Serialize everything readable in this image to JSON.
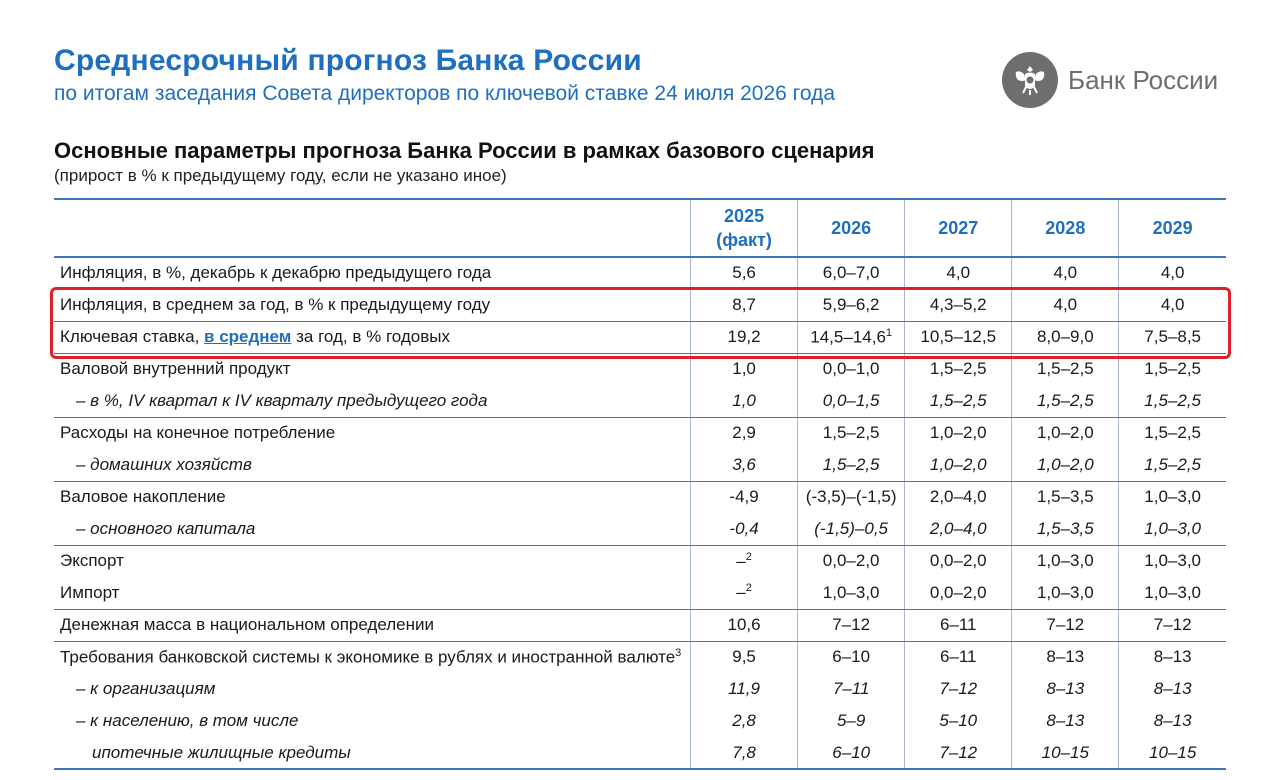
{
  "header": {
    "title": "Среднесрочный прогноз Банка России",
    "subtitle": "по итогам заседания Совета директоров по ключевой ставке 24 июля 2026 года"
  },
  "logo": {
    "text": "Банк России",
    "icon": "double-headed-eagle-emblem",
    "color": "#6e6e6e"
  },
  "section": {
    "title": "Основные параметры прогноза Банка России в рамках базового сценария",
    "note": "(прирост в % к предыдущему году, если не указано иное)"
  },
  "table": {
    "columns": [
      {
        "year": "2025",
        "note": "(факт)"
      },
      {
        "year": "2026",
        "note": ""
      },
      {
        "year": "2027",
        "note": ""
      },
      {
        "year": "2028",
        "note": ""
      },
      {
        "year": "2029",
        "note": ""
      }
    ],
    "rows": [
      {
        "label": "Инфляция, в %, декабрь к декабрю предыдущего года",
        "values": [
          "5,6",
          "6,0–7,0",
          "4,0",
          "4,0",
          "4,0"
        ]
      },
      {
        "label": "Инфляция, в среднем за год, в % к предыдущему году",
        "values": [
          "8,7",
          "5,9–6,2",
          "4,3–5,2",
          "4,0",
          "4,0"
        ]
      },
      {
        "label_pre": "Ключевая ставка, ",
        "label_link": "в среднем",
        "label_post": " за год, в % годовых",
        "values": [
          "19,2",
          "14,5–14,6",
          "10,5–12,5",
          "8,0–9,0",
          "7,5–8,5"
        ],
        "footnote": "1"
      },
      {
        "label": "Валовой внутренний продукт",
        "values": [
          "1,0",
          "0,0–1,0",
          "1,5–2,5",
          "1,5–2,5",
          "1,5–2,5"
        ]
      },
      {
        "label": "– в %, IV квартал к IV кварталу предыдущего года",
        "values": [
          "1,0",
          "0,0–1,5",
          "1,5–2,5",
          "1,5–2,5",
          "1,5–2,5"
        ]
      },
      {
        "label": "Расходы на конечное потребление",
        "values": [
          "2,9",
          "1,5–2,5",
          "1,0–2,0",
          "1,0–2,0",
          "1,5–2,5"
        ]
      },
      {
        "label": "– домашних хозяйств",
        "values": [
          "3,6",
          "1,5–2,5",
          "1,0–2,0",
          "1,0–2,0",
          "1,5–2,5"
        ]
      },
      {
        "label": "Валовое накопление",
        "values": [
          "-4,9",
          "(-3,5)–(-1,5)",
          "2,0–4,0",
          "1,5–3,5",
          "1,0–3,0"
        ]
      },
      {
        "label": "– основного капитала",
        "values": [
          "-0,4",
          "(-1,5)–0,5",
          "2,0–4,0",
          "1,5–3,5",
          "1,0–3,0"
        ]
      },
      {
        "label": "Экспорт",
        "values": [
          "–",
          "0,0–2,0",
          "0,0–2,0",
          "1,0–3,0",
          "1,0–3,0"
        ],
        "footnote": "2"
      },
      {
        "label": "Импорт",
        "values": [
          "–",
          "1,0–3,0",
          "0,0–2,0",
          "1,0–3,0",
          "1,0–3,0"
        ],
        "footnote": "2"
      },
      {
        "label": "Денежная масса в национальном определении",
        "values": [
          "10,6",
          "7–12",
          "6–11",
          "7–12",
          "7–12"
        ]
      },
      {
        "label": "Требования банковской системы к экономике в рублях и иностранной валюте",
        "values": [
          "9,5",
          "6–10",
          "6–11",
          "8–13",
          "8–13"
        ],
        "footnote": "3"
      },
      {
        "label": "– к организациям",
        "values": [
          "11,9",
          "7–11",
          "7–12",
          "8–13",
          "8–13"
        ]
      },
      {
        "label": "– к населению, в том числе",
        "values": [
          "2,8",
          "5–9",
          "5–10",
          "8–13",
          "8–13"
        ]
      },
      {
        "label": "ипотечные жилищные кредиты",
        "values": [
          "7,8",
          "6–10",
          "7–12",
          "10–15",
          "10–15"
        ]
      }
    ]
  },
  "colors": {
    "accent": "#1f6fc1",
    "rule": "#3e74c2",
    "highlight": "#e0202a"
  }
}
